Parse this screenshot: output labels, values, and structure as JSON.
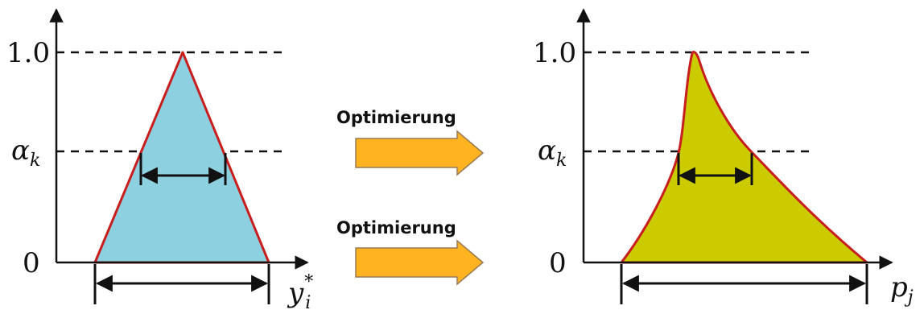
{
  "left_panel": {
    "tick_top": "1.0",
    "tick_alpha": "α",
    "tick_alpha_sub": "k",
    "tick_zero": "0",
    "axis_var": "y",
    "axis_var_sub": "i",
    "axis_var_sup": "*",
    "fill_color": "#8dd0e0",
    "edge_color": "#c81e1e"
  },
  "right_panel": {
    "tick_top": "1.0",
    "tick_alpha": "α",
    "tick_alpha_sub": "k",
    "tick_zero": "0",
    "axis_var": "p",
    "axis_var_sub": "j",
    "fill_color": "#cbcb00",
    "edge_color": "#c81e1e"
  },
  "arrows": [
    {
      "label": "Optimierung",
      "color": "#ffb320"
    },
    {
      "label": "Optimierung",
      "color": "#ffb320"
    }
  ]
}
